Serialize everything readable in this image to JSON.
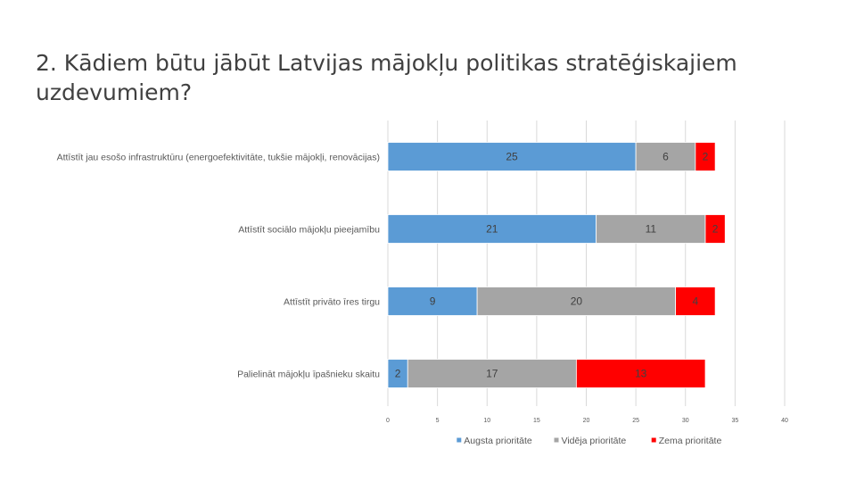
{
  "slide": {
    "title": "2. Kādiem būtu jābūt Latvijas mājokļu politikas stratēģiskajiem uzdevumiem?"
  },
  "chart_data": {
    "type": "bar",
    "orientation": "horizontal",
    "stacked": true,
    "categories": [
      "Attīstīt jau esošo infrastruktūru (energoefektivitāte, tukšie mājokļi, renovācijas)",
      "Attīstīt sociālo mājokļu pieejamību",
      "Attīstīt privāto īres tirgu",
      "Palielināt mājokļu īpašnieku skaitu"
    ],
    "series": [
      {
        "name": "Augsta prioritāte",
        "color": "#5b9bd5",
        "values": [
          25,
          21,
          9,
          2
        ]
      },
      {
        "name": "Vidēja prioritāte",
        "color": "#a5a5a5",
        "values": [
          6,
          11,
          20,
          17
        ]
      },
      {
        "name": "Zema prioritāte",
        "color": "#ff0000",
        "values": [
          2,
          2,
          4,
          13
        ]
      }
    ],
    "xlim": [
      0,
      40
    ],
    "xticks": [
      0,
      5,
      10,
      15,
      20,
      25,
      30,
      35,
      40
    ],
    "grid": "vertical",
    "legend_position": "bottom",
    "data_labels": true
  }
}
